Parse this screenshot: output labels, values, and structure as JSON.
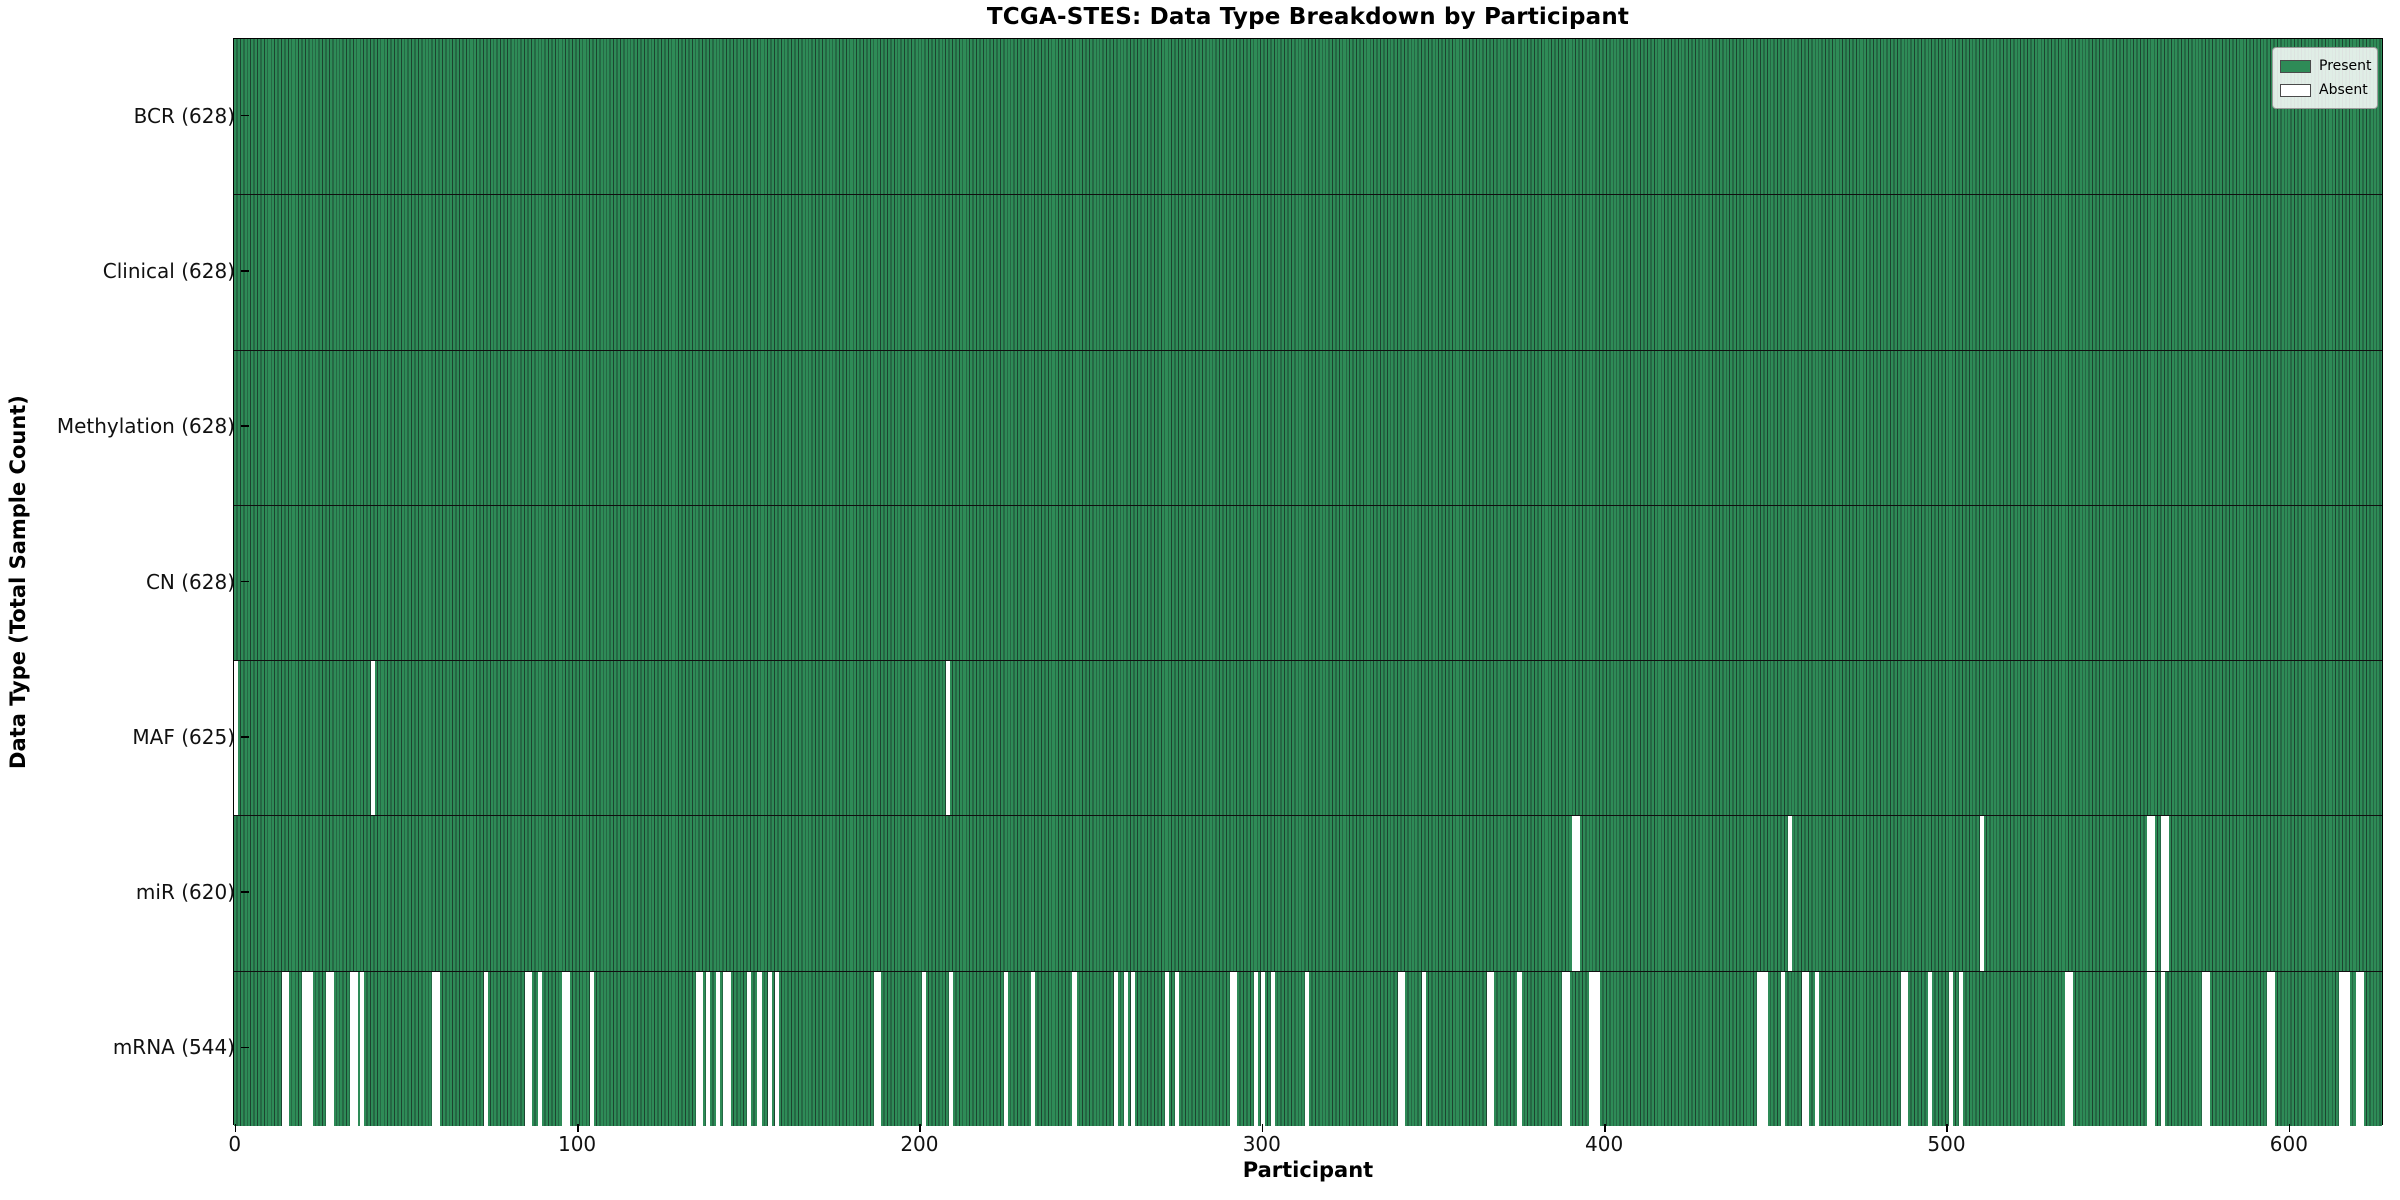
{
  "title": "TCGA-STES: Data Type Breakdown by Participant",
  "xlabel": "Participant",
  "ylabel": "Data Type (Total Sample Count)",
  "legend": {
    "present_label": "Present",
    "absent_label": "Absent",
    "position": "upper right"
  },
  "colors": {
    "present": "#2e8b57",
    "absent": "#ffffff",
    "bar_edge": "#1c4430",
    "axis": "#000000",
    "background": "#ffffff"
  },
  "chart_data": {
    "type": "heatmap",
    "title": "TCGA-STES: Data Type Breakdown by Participant",
    "xlabel": "Participant",
    "ylabel": "Data Type (Total Sample Count)",
    "legend": [
      "Present",
      "Absent"
    ],
    "legend_position": "upper right",
    "grid": false,
    "n_participants": 628,
    "xlim": [
      -0.5,
      627.5
    ],
    "x_ticks": [
      0,
      100,
      200,
      300,
      400,
      500,
      600
    ],
    "rows": [
      {
        "name": "BCR",
        "label": "BCR (628)",
        "present_count": 628,
        "absent_participants": []
      },
      {
        "name": "Clinical",
        "label": "Clinical (628)",
        "present_count": 628,
        "absent_participants": []
      },
      {
        "name": "Methylation",
        "label": "Methylation (628)",
        "present_count": 628,
        "absent_participants": []
      },
      {
        "name": "CN",
        "label": "CN (628)",
        "present_count": 628,
        "absent_participants": []
      },
      {
        "name": "MAF",
        "label": "MAF (625)",
        "present_count": 625,
        "absent_participants": [
          0,
          40,
          208
        ]
      },
      {
        "name": "miR",
        "label": "miR (620)",
        "present_count": 620,
        "absent_participants": [
          391,
          392,
          454,
          510,
          559,
          560,
          563,
          564
        ]
      },
      {
        "name": "mRNA",
        "label": "mRNA (544)",
        "present_count": 544,
        "absent_participants": [
          14,
          15,
          20,
          21,
          22,
          27,
          28,
          34,
          35,
          37,
          58,
          59,
          73,
          85,
          86,
          89,
          96,
          97,
          104,
          135,
          136,
          138,
          141,
          143,
          144,
          150,
          153,
          156,
          158,
          187,
          188,
          201,
          209,
          225,
          233,
          245,
          257,
          260,
          262,
          272,
          275,
          291,
          292,
          298,
          300,
          303,
          313,
          340,
          341,
          347,
          366,
          367,
          375,
          388,
          389,
          396,
          397,
          398,
          445,
          446,
          447,
          452,
          458,
          459,
          462,
          487,
          488,
          495,
          501,
          504,
          535,
          536,
          559,
          560,
          563,
          575,
          576,
          594,
          595,
          615,
          616,
          617,
          620,
          621
        ]
      }
    ]
  }
}
